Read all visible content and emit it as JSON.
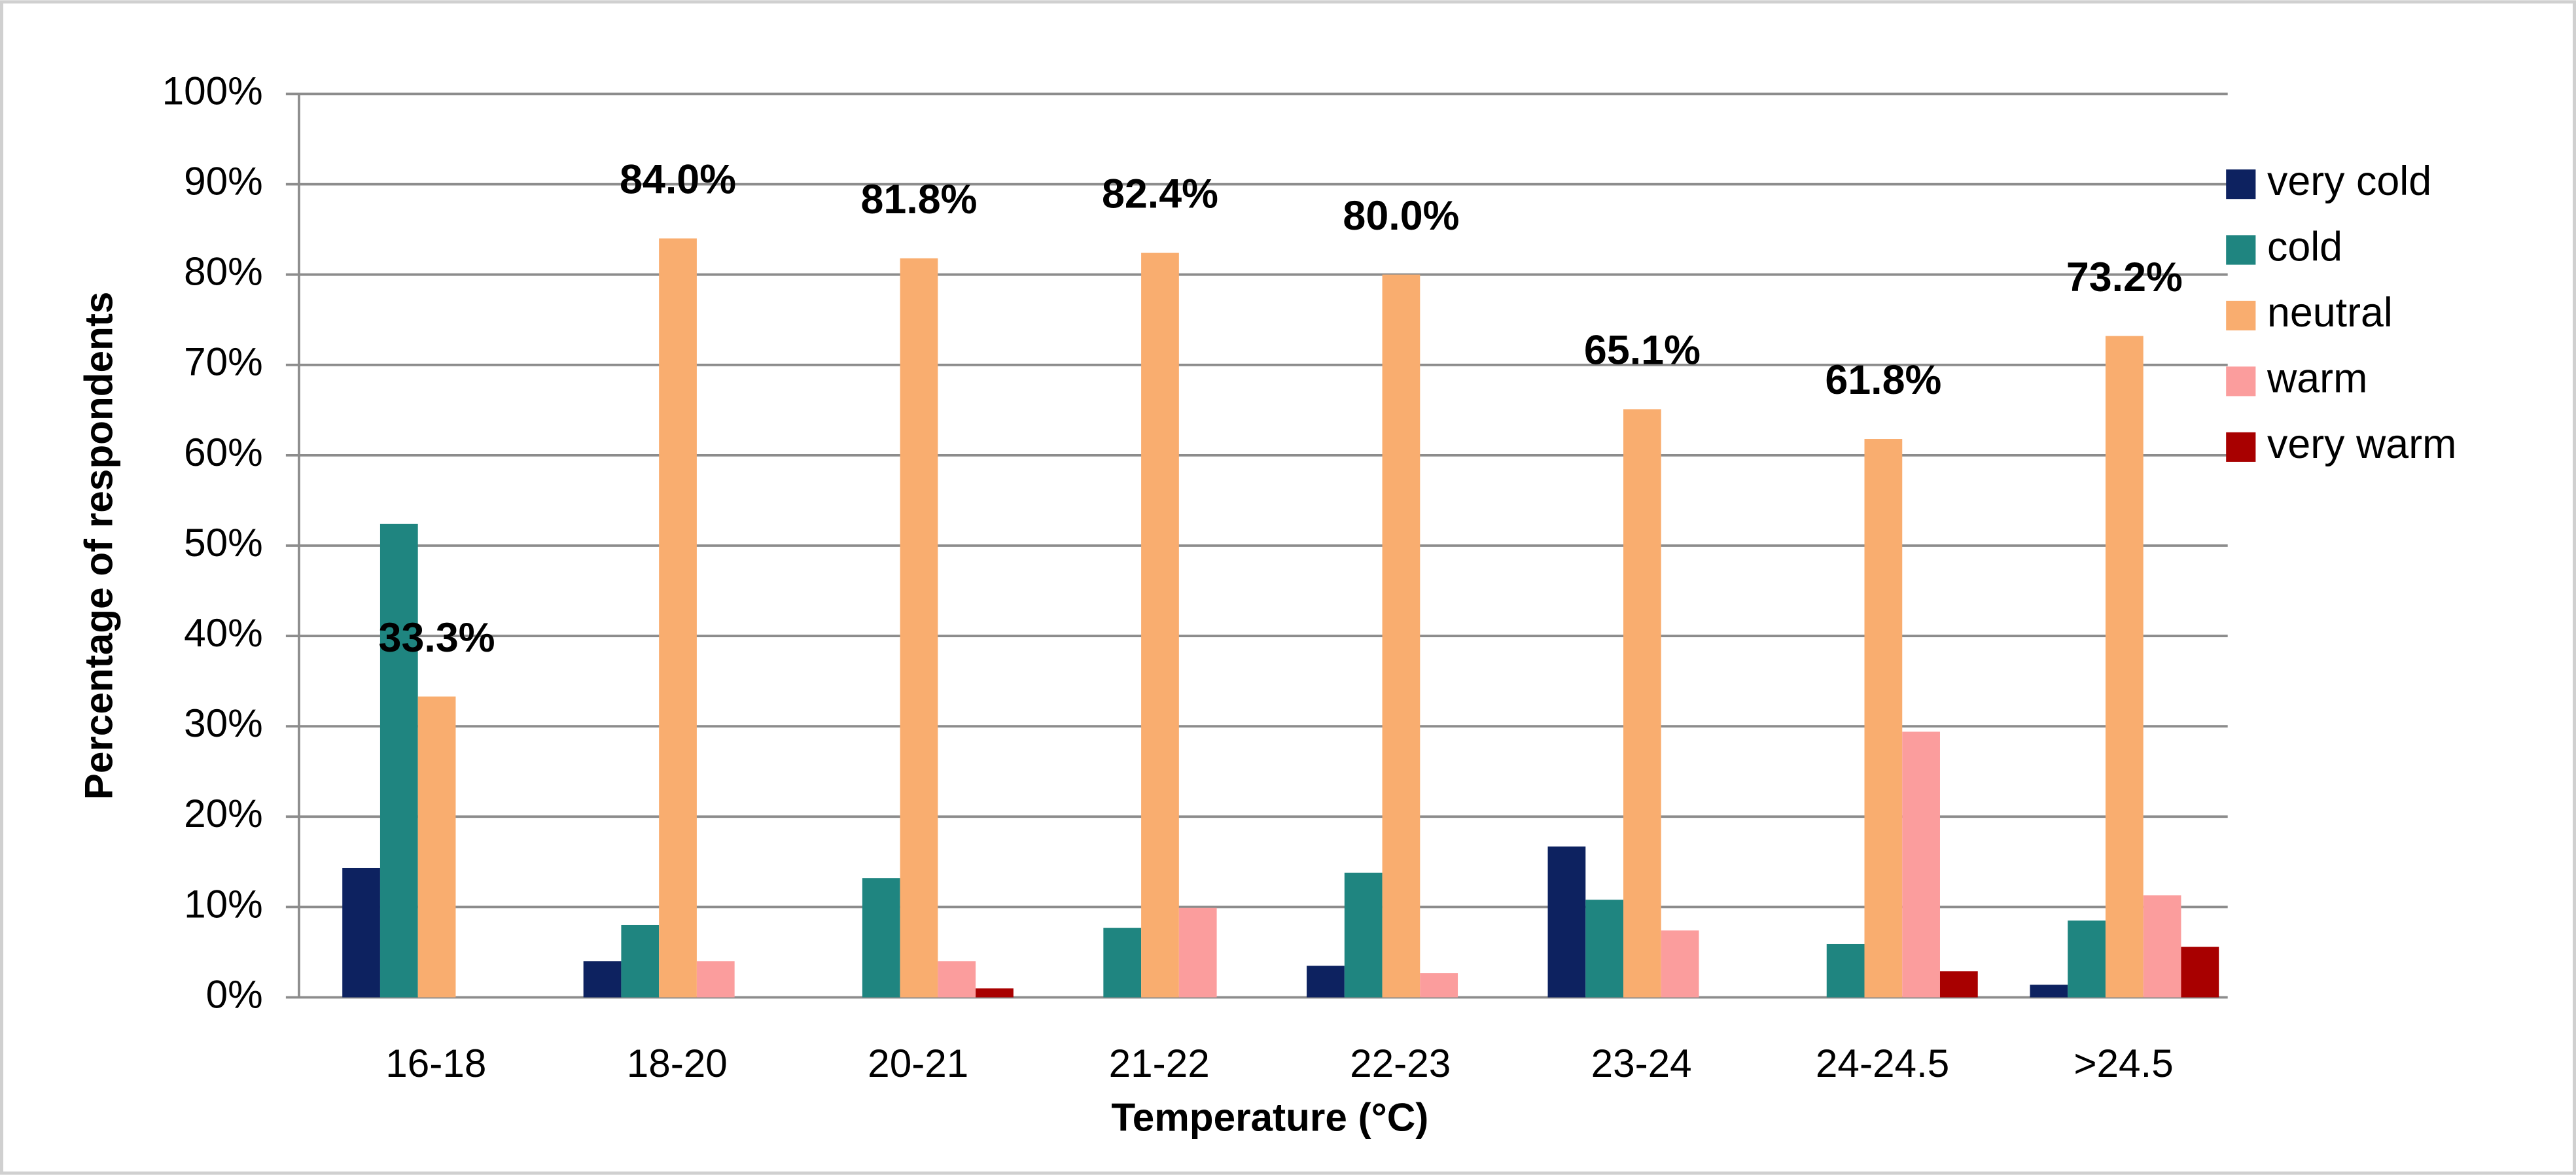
{
  "chart_data": {
    "type": "bar",
    "x_label": "Temperature (°C)",
    "y_label": "Percentage of respondents",
    "categories": [
      "16-18",
      "18-20",
      "20-21",
      "21-22",
      "22-23",
      "23-24",
      "24-24.5",
      ">24.5"
    ],
    "series": [
      {
        "name": "very cold",
        "color": "#0d2260",
        "values": [
          14.3,
          4.0,
          0,
          0,
          3.5,
          16.7,
          0,
          1.4
        ]
      },
      {
        "name": "cold",
        "color": "#1f8580",
        "values": [
          52.4,
          8.0,
          13.2,
          7.7,
          13.8,
          10.8,
          5.9,
          8.5
        ]
      },
      {
        "name": "neutral",
        "color": "#f9ad6f",
        "values": [
          33.3,
          84.0,
          81.8,
          82.4,
          80.0,
          65.1,
          61.8,
          73.2
        ],
        "value_labels": [
          "33.3%",
          "84.0%",
          "81.8%",
          "82.4%",
          "80.0%",
          "65.1%",
          "61.8%",
          "73.2%"
        ]
      },
      {
        "name": "warm",
        "color": "#fb9d9d",
        "values": [
          0,
          4.0,
          4.0,
          9.9,
          2.7,
          7.4,
          29.4,
          11.3
        ]
      },
      {
        "name": "very warm",
        "color": "#a80000",
        "values": [
          0,
          0,
          1.0,
          0,
          0,
          0,
          2.9,
          5.6
        ]
      }
    ],
    "ylim": [
      0,
      100
    ],
    "yticks": [
      {
        "value": 0,
        "label": "0%"
      },
      {
        "value": 10,
        "label": "10%"
      },
      {
        "value": 20,
        "label": "20%"
      },
      {
        "value": 30,
        "label": "30%"
      },
      {
        "value": 40,
        "label": "40%"
      },
      {
        "value": 50,
        "label": "50%"
      },
      {
        "value": 60,
        "label": "60%"
      },
      {
        "value": 70,
        "label": "70%"
      },
      {
        "value": 80,
        "label": "80%"
      },
      {
        "value": 90,
        "label": "90%"
      },
      {
        "value": 100,
        "label": "100%"
      }
    ],
    "grid": true,
    "legend": "right"
  }
}
